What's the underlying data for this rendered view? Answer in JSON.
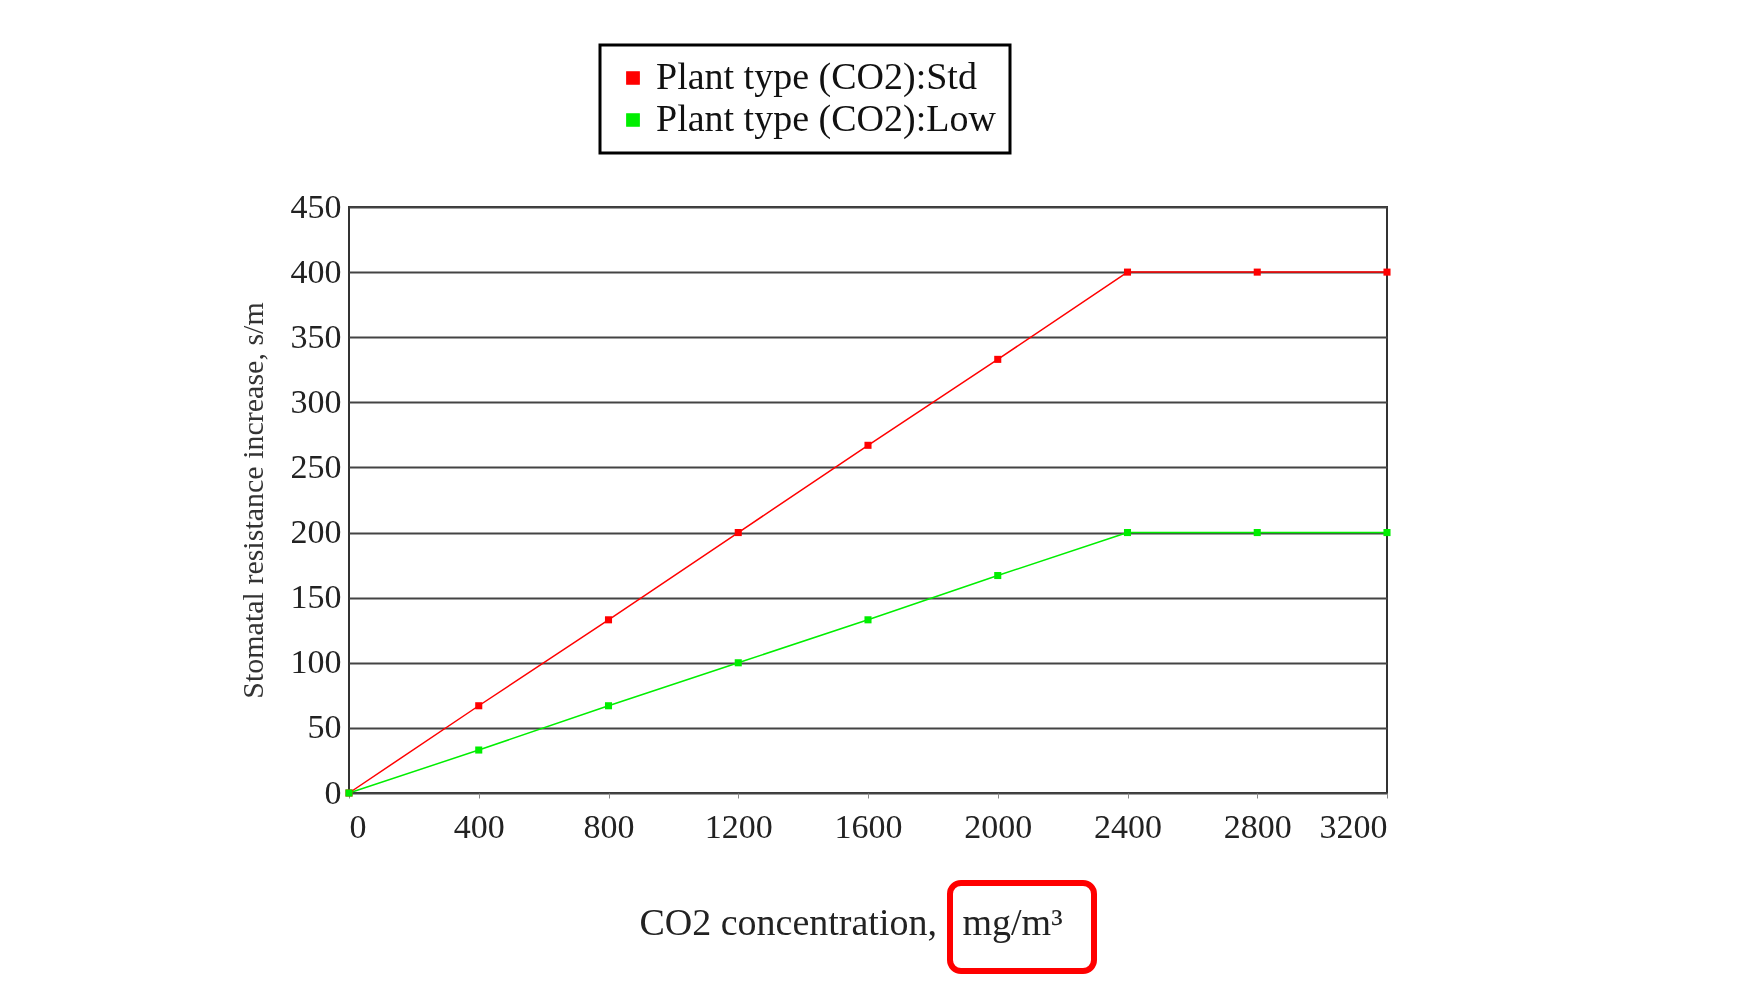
{
  "chart_data": {
    "type": "line",
    "xlabel": "CO2 concentration, mg/m³",
    "ylabel": "Stomatal resistance increase, s/m",
    "x": [
      0,
      400,
      800,
      1200,
      1600,
      2000,
      2400,
      2800,
      3200
    ],
    "series": [
      {
        "name": "Plant type (CO2):Std",
        "color": "#ff0000",
        "values": [
          0,
          67,
          133,
          200,
          267,
          333,
          400,
          400,
          400
        ]
      },
      {
        "name": "Plant type (CO2):Low",
        "color": "#00ee00",
        "values": [
          0,
          33,
          67,
          100,
          133,
          167,
          200,
          200,
          200
        ]
      }
    ],
    "xlim": [
      0,
      3200
    ],
    "xticks": [
      0,
      400,
      800,
      1200,
      1600,
      2000,
      2400,
      2800,
      3200
    ],
    "ylim": [
      0,
      450
    ],
    "yticks": [
      0,
      50,
      100,
      150,
      200,
      250,
      300,
      350,
      400,
      450
    ],
    "grid": "y",
    "legend": "top",
    "marker": "square",
    "line_style": "solid"
  }
}
